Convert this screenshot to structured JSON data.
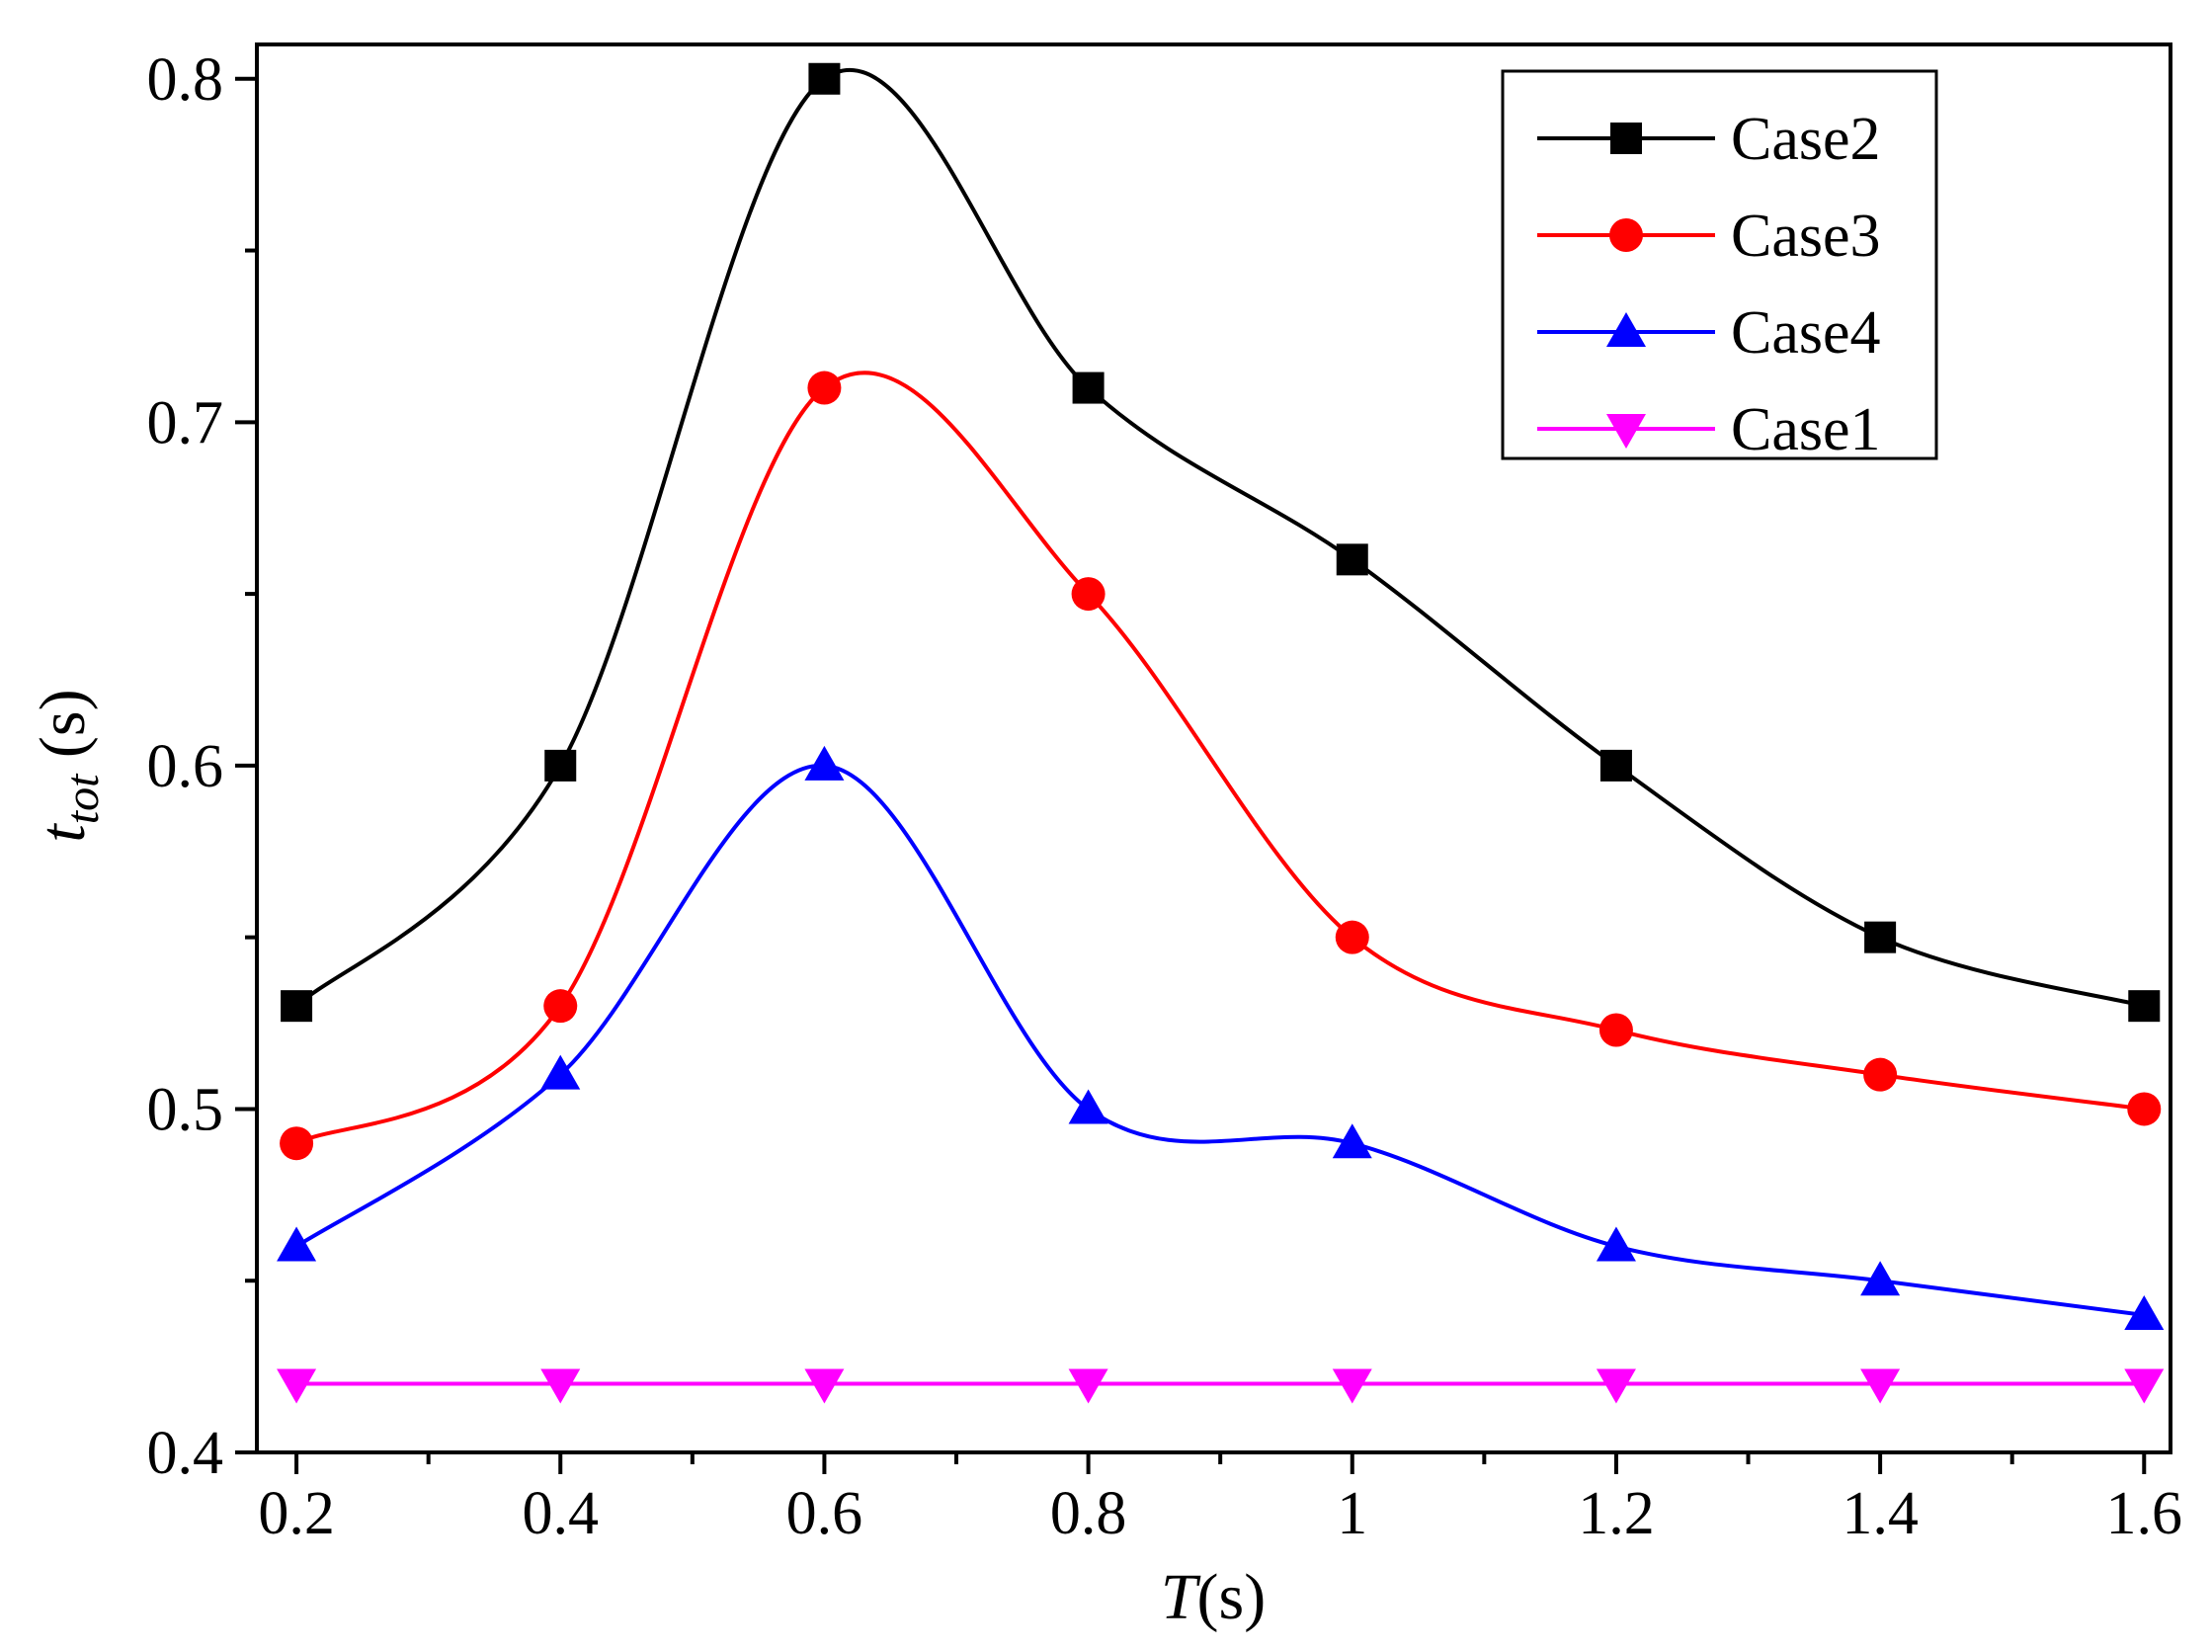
{
  "chart_data": {
    "type": "line",
    "title": "",
    "xlabel": {
      "italic": "T",
      "rest": "(s)"
    },
    "ylabel": {
      "base": "t",
      "sub": "tot",
      "rest": " (s)"
    },
    "x": [
      0.2,
      0.4,
      0.6,
      0.8,
      1.0,
      1.2,
      1.4,
      1.6
    ],
    "xlim": [
      0.17,
      1.62
    ],
    "ylim": [
      0.4,
      0.81
    ],
    "xticks": [
      0.2,
      0.4,
      0.6,
      0.8,
      1.0,
      1.2,
      1.4,
      1.6
    ],
    "xtick_labels": [
      "0.2",
      "0.4",
      "0.6",
      "0.8",
      "1",
      "1.2",
      "1.4",
      "1.6"
    ],
    "yticks": [
      0.4,
      0.5,
      0.6,
      0.7,
      0.8
    ],
    "ytick_labels": [
      "0.4",
      "0.5",
      "0.6",
      "0.7",
      "0.8"
    ],
    "grid": false,
    "legend_position": "top-right",
    "series": [
      {
        "name": "Case2",
        "color": "#000000",
        "marker": "square",
        "values": [
          0.53,
          0.6,
          0.8,
          0.71,
          0.66,
          0.6,
          0.55,
          0.53
        ]
      },
      {
        "name": "Case3",
        "color": "#ff0000",
        "marker": "circle",
        "values": [
          0.49,
          0.53,
          0.71,
          0.65,
          0.55,
          0.523,
          0.51,
          0.5
        ]
      },
      {
        "name": "Case4",
        "color": "#0000ff",
        "marker": "triangle-up",
        "values": [
          0.46,
          0.51,
          0.6,
          0.5,
          0.49,
          0.46,
          0.45,
          0.44
        ]
      },
      {
        "name": "Case1",
        "color": "#ff00ff",
        "marker": "triangle-down",
        "values": [
          0.42,
          0.42,
          0.42,
          0.42,
          0.42,
          0.42,
          0.42,
          0.42
        ]
      }
    ]
  }
}
